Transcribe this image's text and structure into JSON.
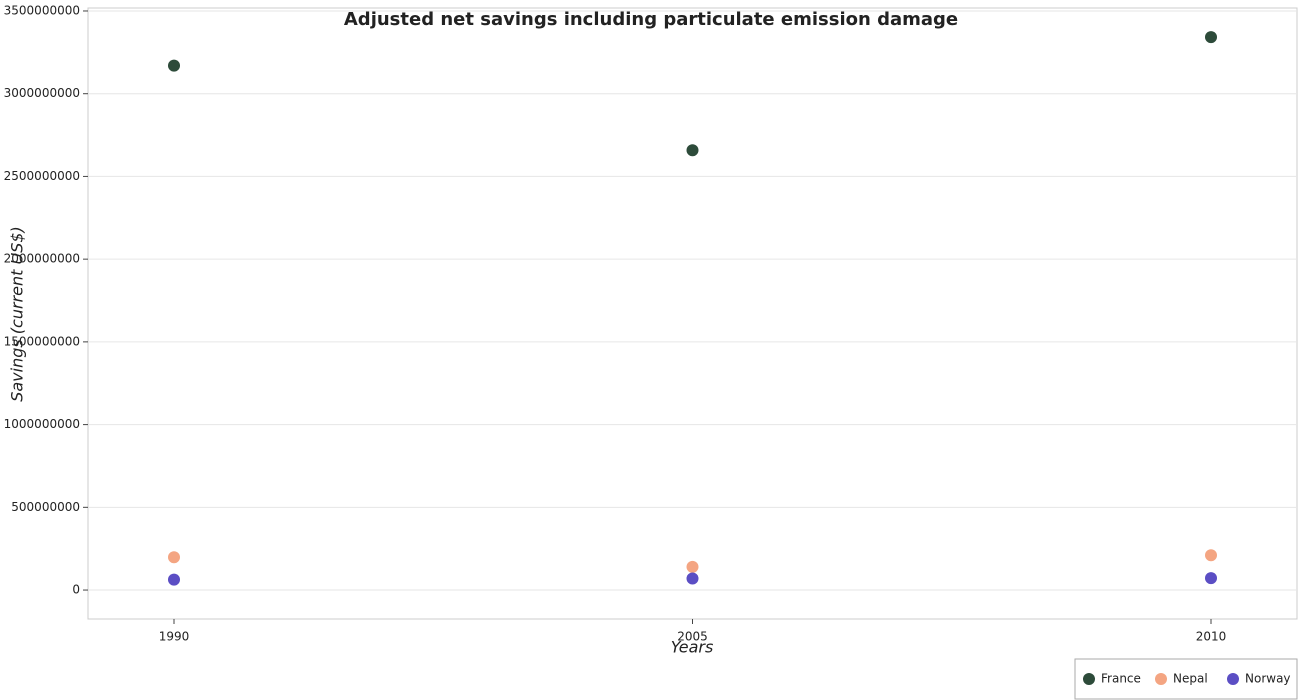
{
  "chart_data": {
    "type": "scatter",
    "title": "Adjusted net savings including particulate emission damage",
    "xlabel": "Years",
    "ylabel": "Savings (current US$)",
    "categories": [
      "1990",
      "2005",
      "2010"
    ],
    "series": [
      {
        "name": "France",
        "color": "#2d4b3a",
        "values": [
          3170000000,
          2658000000,
          3342000000
        ]
      },
      {
        "name": "Nepal",
        "color": "#f4a582",
        "values": [
          198000000,
          140000000,
          210000000
        ]
      },
      {
        "name": "Norway",
        "color": "#5b4ec4",
        "values": [
          63000000,
          70000000,
          72000000
        ]
      }
    ],
    "ylim": [
      -175000000,
      3518000000
    ],
    "yticks": [
      0,
      500000000,
      1000000000,
      1500000000,
      2000000000,
      2500000000,
      3000000000,
      3500000000
    ],
    "grid": true,
    "legend": "bottom-right"
  }
}
